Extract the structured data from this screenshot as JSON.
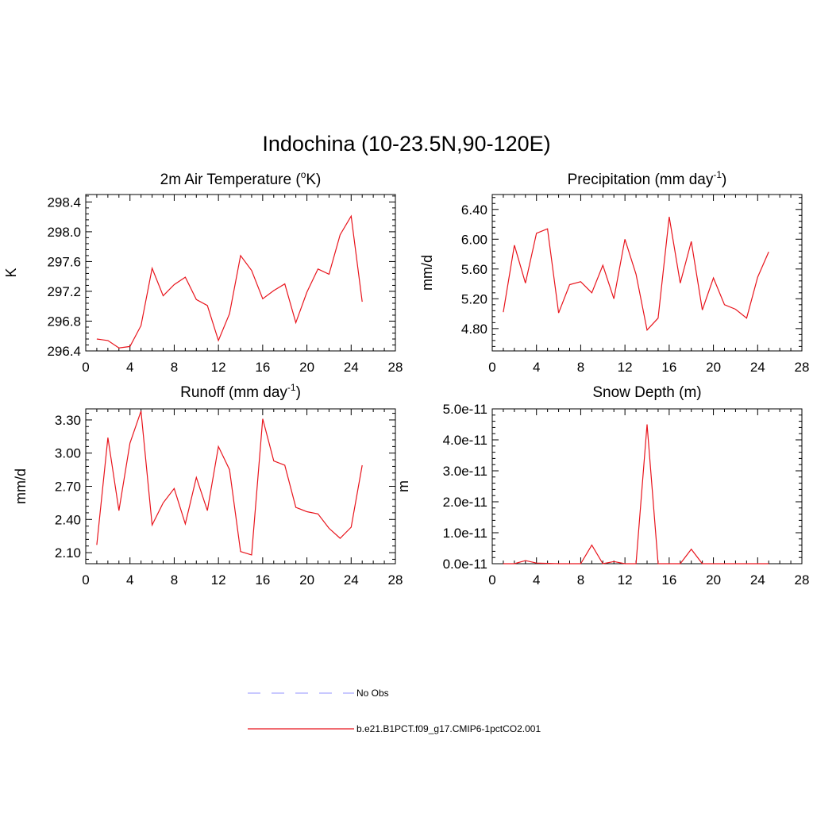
{
  "figure": {
    "title": "Indochina (10-23.5N,90-120E)"
  },
  "colors": {
    "model": "#e8141c",
    "obs": "#a9a9ff",
    "axis": "#000000"
  },
  "chart_data": [
    {
      "id": "temp",
      "type": "line",
      "title": "2m Air Temperature",
      "title_sup": "o",
      "title_post": "K)",
      "title_pre": "2m Air Temperature (",
      "ylabel": "K",
      "xlim": [
        0,
        28
      ],
      "ylim": [
        296.4,
        298.5
      ],
      "xticks": [
        "0",
        "4",
        "8",
        "12",
        "16",
        "20",
        "24",
        "28"
      ],
      "yticks": [
        "296.4",
        "296.8",
        "297.2",
        "297.6",
        "298.0",
        "298.4"
      ],
      "ytick_values": [
        296.4,
        296.8,
        297.2,
        297.6,
        298.0,
        298.4
      ],
      "series": [
        {
          "x": [
            1,
            2,
            3,
            4,
            5,
            6,
            7,
            8,
            9,
            10,
            11,
            12,
            13,
            14,
            15,
            16,
            17,
            18,
            19,
            20,
            21,
            22,
            23,
            24,
            25
          ],
          "values": [
            296.56,
            296.54,
            296.44,
            296.46,
            296.74,
            297.51,
            297.14,
            297.29,
            297.39,
            297.09,
            297.01,
            296.54,
            296.9,
            297.68,
            297.48,
            297.1,
            297.21,
            297.3,
            296.78,
            297.19,
            297.5,
            297.43,
            297.96,
            298.21,
            297.06
          ]
        }
      ]
    },
    {
      "id": "precip",
      "type": "line",
      "title_pre": "Precipitation (mm day",
      "title_sup": "-1",
      "title_post": ")",
      "ylabel": "mm/d",
      "xlim": [
        0,
        28
      ],
      "ylim": [
        4.5,
        6.6
      ],
      "xticks": [
        "0",
        "4",
        "8",
        "12",
        "16",
        "20",
        "24",
        "28"
      ],
      "yticks": [
        "4.80",
        "5.20",
        "5.60",
        "6.00",
        "6.40"
      ],
      "ytick_values": [
        4.8,
        5.2,
        5.6,
        6.0,
        6.4
      ],
      "series": [
        {
          "x": [
            1,
            2,
            3,
            4,
            5,
            6,
            7,
            8,
            9,
            10,
            11,
            12,
            13,
            14,
            15,
            16,
            17,
            18,
            19,
            20,
            21,
            22,
            23,
            24,
            25
          ],
          "values": [
            5.02,
            5.92,
            5.41,
            6.08,
            6.14,
            5.01,
            5.39,
            5.43,
            5.28,
            5.65,
            5.2,
            6.0,
            5.53,
            4.78,
            4.94,
            6.3,
            5.41,
            5.97,
            5.05,
            5.48,
            5.12,
            5.06,
            4.94,
            5.49,
            5.83
          ]
        }
      ]
    },
    {
      "id": "runoff",
      "type": "line",
      "title_pre": "Runoff (mm day",
      "title_sup": "-1",
      "title_post": ")",
      "ylabel": "mm/d",
      "xlim": [
        0,
        28
      ],
      "ylim": [
        2.0,
        3.4
      ],
      "xticks": [
        "0",
        "4",
        "8",
        "12",
        "16",
        "20",
        "24",
        "28"
      ],
      "yticks": [
        "2.10",
        "2.40",
        "2.70",
        "3.00",
        "3.30"
      ],
      "ytick_values": [
        2.1,
        2.4,
        2.7,
        3.0,
        3.3
      ],
      "series": [
        {
          "x": [
            1,
            2,
            3,
            4,
            5,
            6,
            7,
            8,
            9,
            10,
            11,
            12,
            13,
            14,
            15,
            16,
            17,
            18,
            19,
            20,
            21,
            22,
            23,
            24,
            25
          ],
          "values": [
            2.17,
            3.14,
            2.48,
            3.09,
            3.38,
            2.35,
            2.55,
            2.68,
            2.36,
            2.78,
            2.48,
            3.06,
            2.85,
            2.11,
            2.08,
            3.31,
            2.93,
            2.89,
            2.51,
            2.47,
            2.45,
            2.32,
            2.23,
            2.33,
            2.89
          ]
        }
      ]
    },
    {
      "id": "snow",
      "type": "line",
      "title_pre": "Snow Depth (m)",
      "title_sup": "",
      "title_post": "",
      "ylabel": "m",
      "xlim": [
        0,
        28
      ],
      "ylim": [
        0,
        5.0
      ],
      "xticks": [
        "0",
        "4",
        "8",
        "12",
        "16",
        "20",
        "24",
        "28"
      ],
      "yticks": [
        "0.0e-11",
        "1.0e-11",
        "2.0e-11",
        "3.0e-11",
        "4.0e-11",
        "5.0e-11"
      ],
      "ytick_values": [
        0,
        1,
        2,
        3,
        4,
        5
      ],
      "y_unit_scale": "e-11",
      "series": [
        {
          "x": [
            1,
            2,
            3,
            4,
            5,
            6,
            7,
            8,
            9,
            10,
            11,
            12,
            13,
            14,
            15,
            16,
            17,
            18,
            19,
            20,
            21,
            22,
            23,
            24,
            25
          ],
          "values": [
            0,
            0,
            0.1,
            0.02,
            0.01,
            0,
            0,
            0,
            0.6,
            0,
            0.07,
            0,
            0,
            4.5,
            0,
            0,
            0,
            0.47,
            0,
            0,
            0,
            0,
            0,
            0,
            0
          ]
        }
      ]
    }
  ],
  "legend": {
    "items": [
      {
        "label": "No Obs",
        "style": "dashed",
        "color_key": "obs"
      },
      {
        "label": "b.e21.B1PCT.f09_g17.CMIP6-1pctCO2.001",
        "style": "solid",
        "color_key": "model"
      }
    ]
  }
}
